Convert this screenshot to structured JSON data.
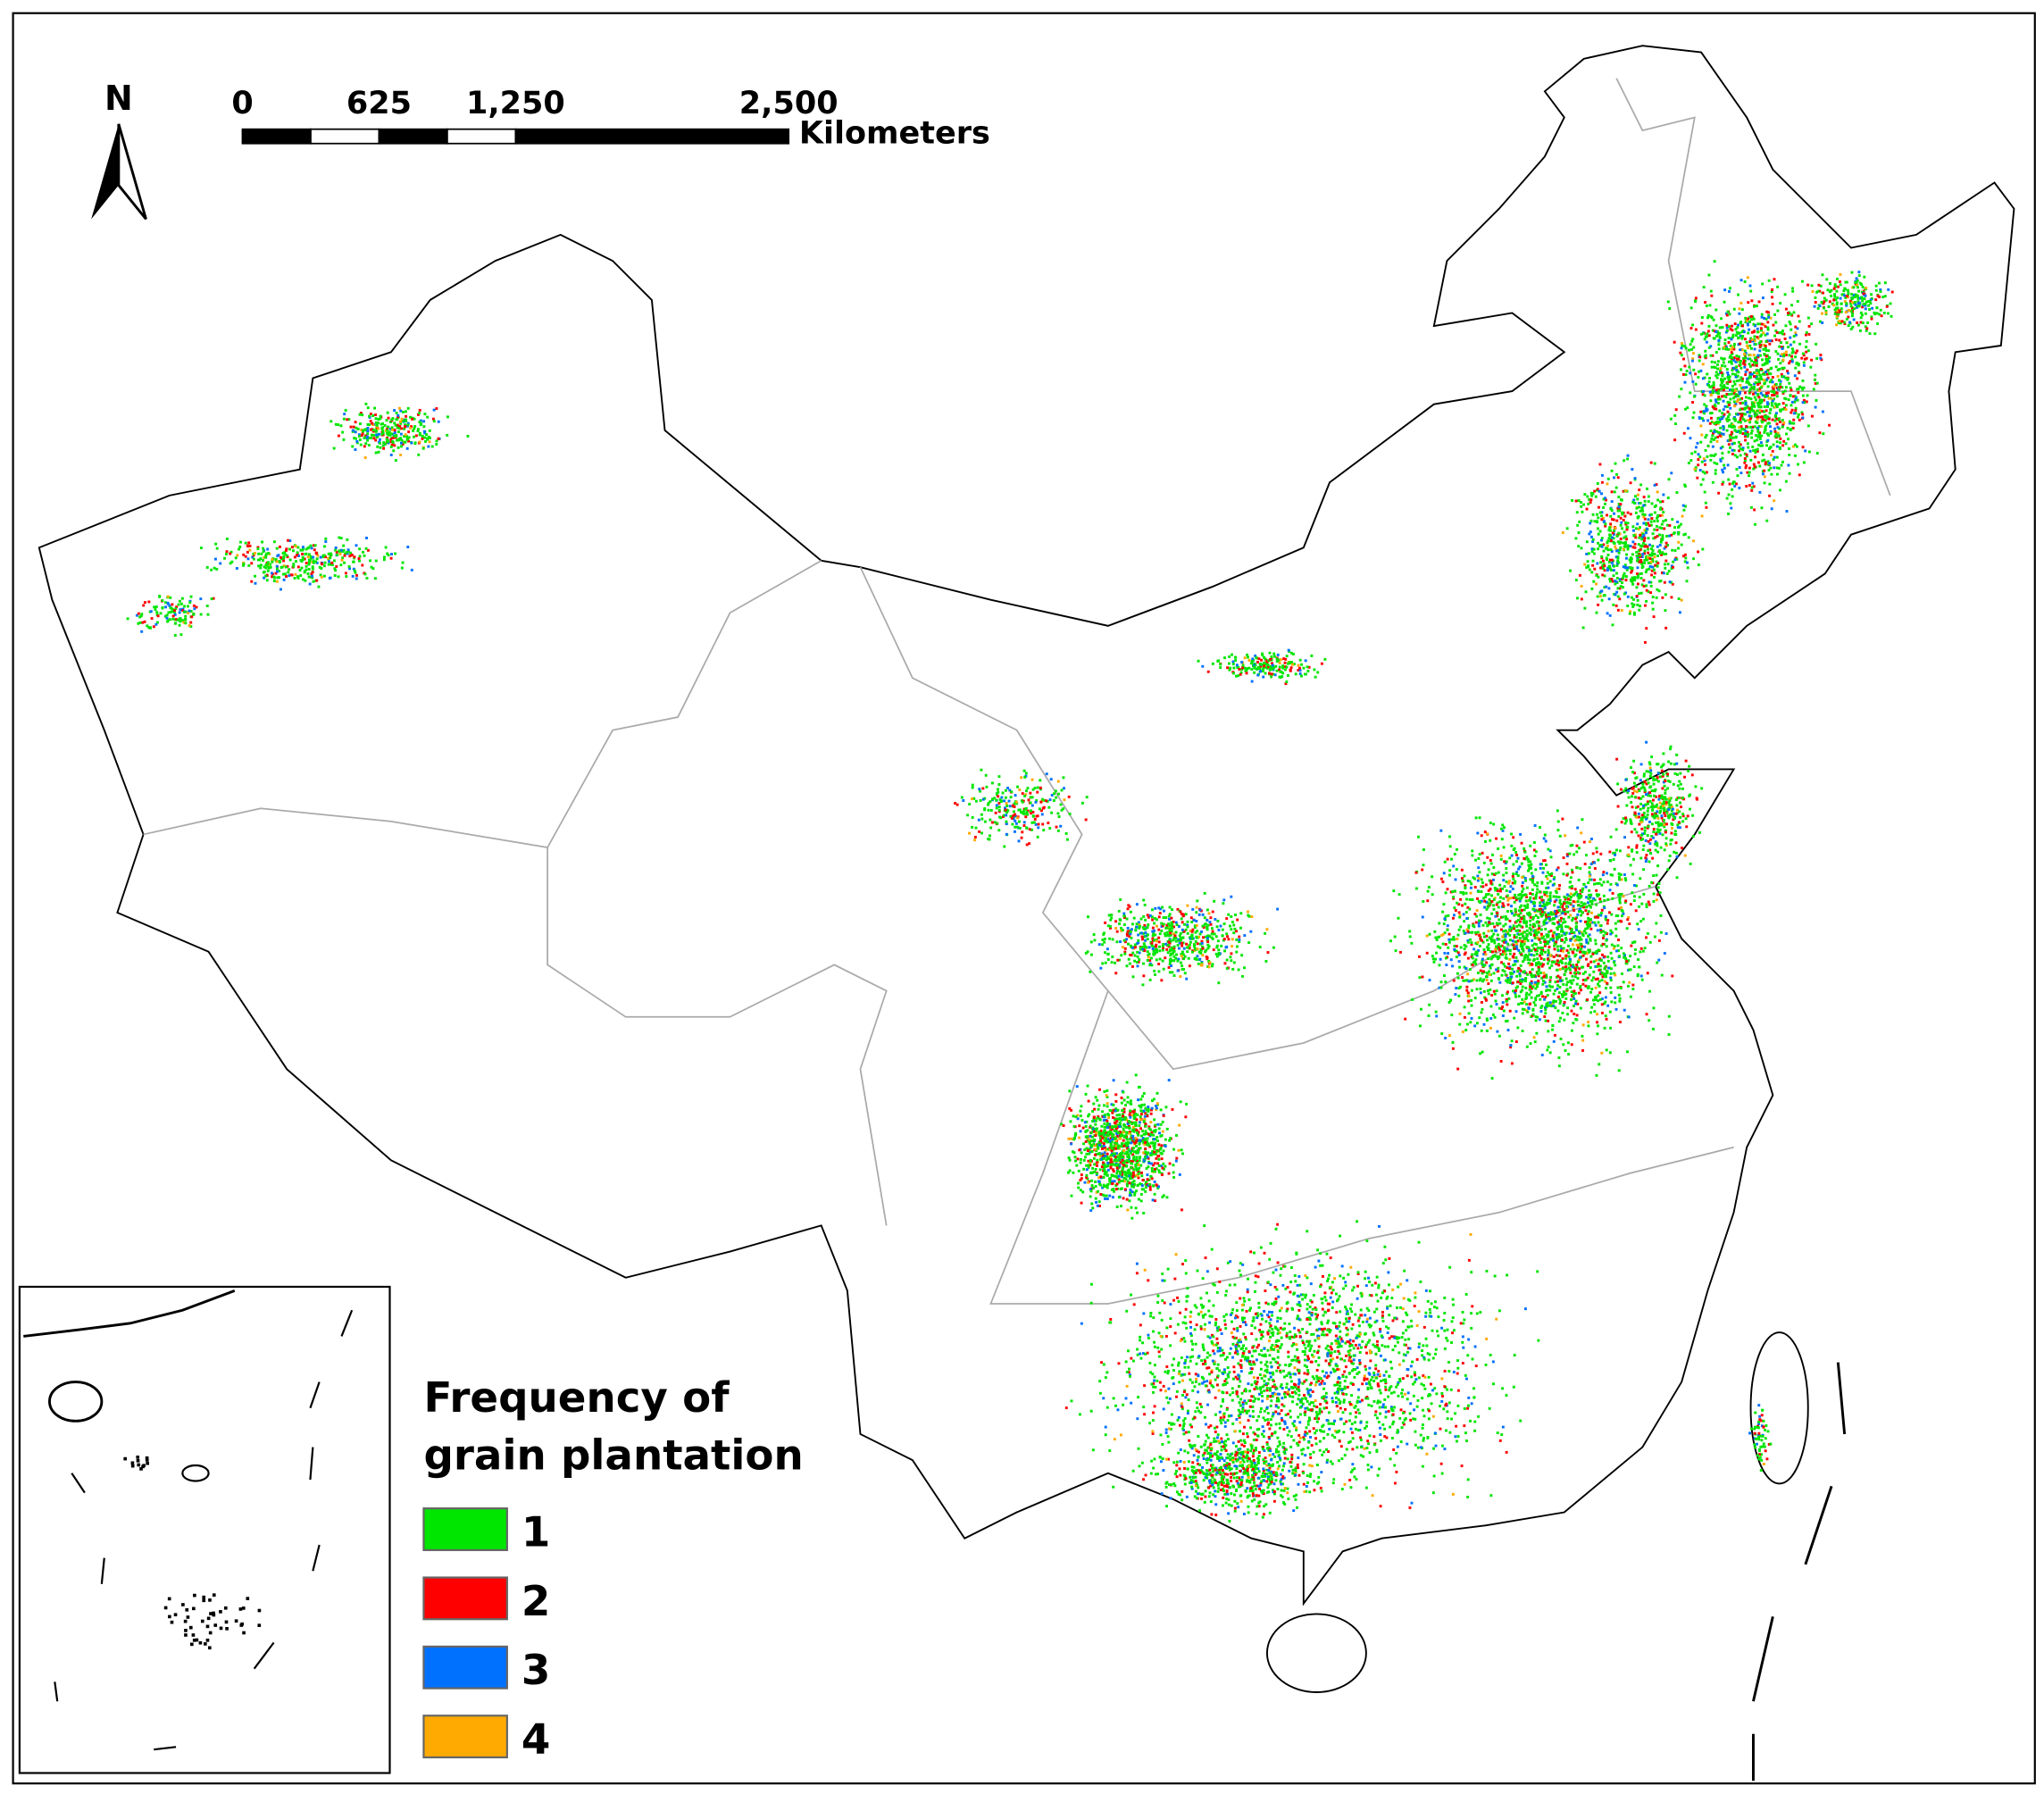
{
  "north_arrow": {
    "label": "N"
  },
  "scale_bar": {
    "ticks": [
      {
        "value": 0,
        "label": "0"
      },
      {
        "value": 625,
        "label": "625"
      },
      {
        "value": 1250,
        "label": "1,250"
      },
      {
        "value": 2500,
        "label": "2,500"
      }
    ],
    "unit": "Kilometers"
  },
  "legend": {
    "title": "Frequency of grain plantation",
    "items": [
      {
        "label": "1",
        "color": "#00e600"
      },
      {
        "label": "2",
        "color": "#ff0000"
      },
      {
        "label": "3",
        "color": "#0070ff"
      },
      {
        "label": "4",
        "color": "#ffaa00"
      }
    ]
  }
}
